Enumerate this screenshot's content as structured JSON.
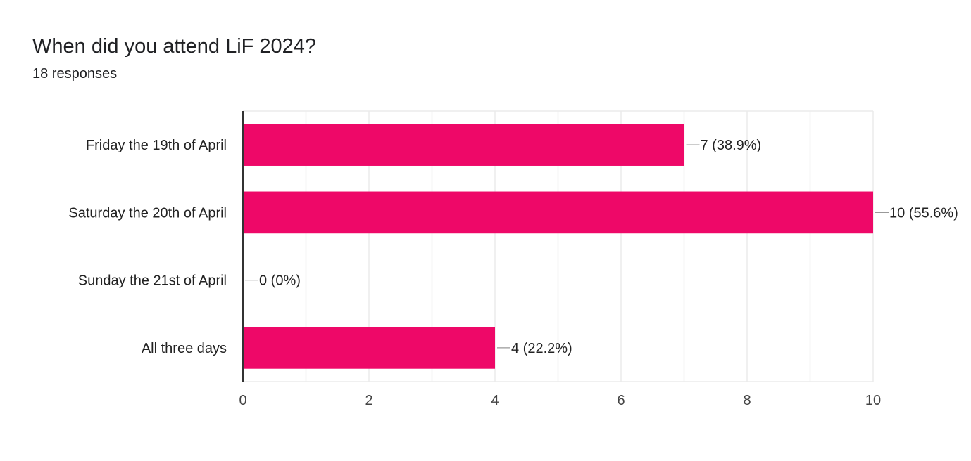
{
  "question": {
    "title": "When did you attend LiF 2024?",
    "responses": "18 responses"
  },
  "colors": {
    "bar": "#ee0868",
    "gridline": "#ebebeb",
    "axis": "#333333",
    "text": "#222222",
    "tick_text": "#444444",
    "leader": "#999999"
  },
  "chart_data": {
    "type": "bar",
    "orientation": "horizontal",
    "categories": [
      "Friday the 19th of April",
      "Saturday the 20th of April",
      "Sunday the 21st of April",
      "All three days"
    ],
    "values": [
      7,
      10,
      0,
      4
    ],
    "data_labels": [
      "7 (38.9%)",
      "10 (55.6%)",
      "0 (0%)",
      "4 (22.2%)"
    ],
    "xlim": [
      0,
      10
    ],
    "x_ticks": [
      0,
      2,
      4,
      6,
      8,
      10
    ],
    "grid": true,
    "legend": "none"
  }
}
